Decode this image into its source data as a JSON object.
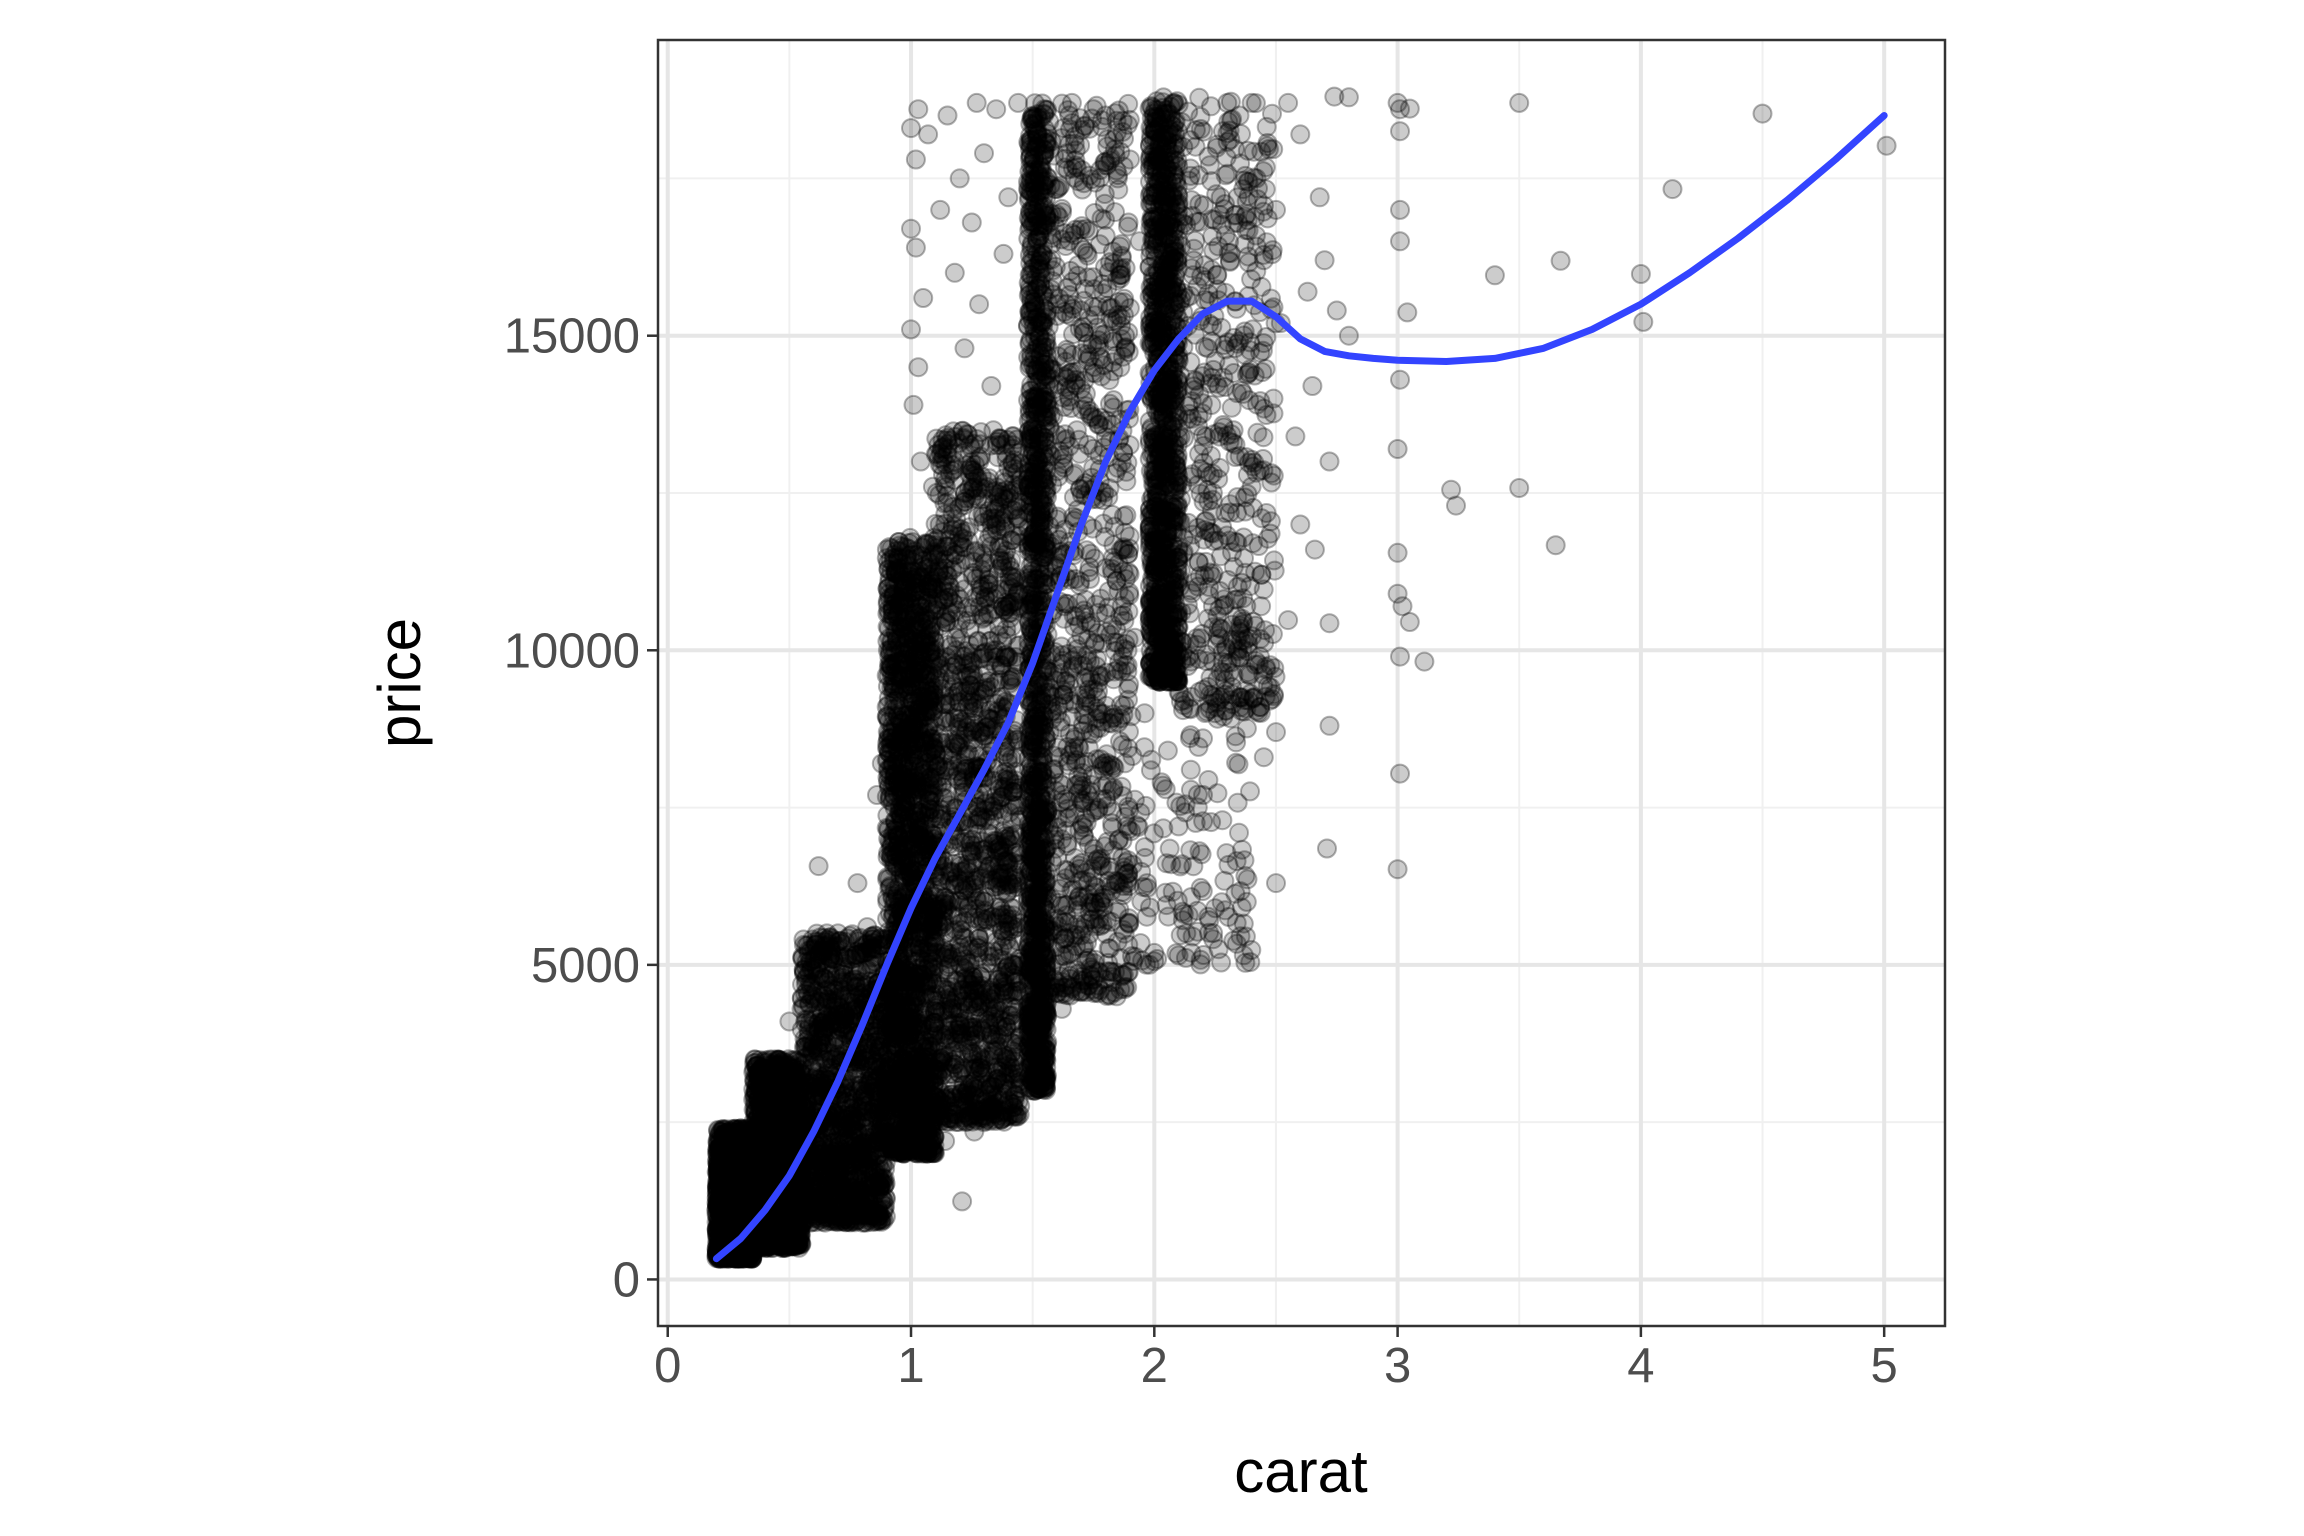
{
  "chart_data": {
    "type": "scatter",
    "title": "",
    "xlabel": "carat",
    "ylabel": "price",
    "xlim": [
      -0.04,
      5.25
    ],
    "ylim": [
      -740,
      19700
    ],
    "x_ticks": [
      0,
      1,
      2,
      3,
      4,
      5
    ],
    "y_ticks": [
      0,
      5000,
      10000,
      15000
    ],
    "x_tick_labels": [
      "0",
      "1",
      "2",
      "3",
      "4",
      "5"
    ],
    "y_tick_labels": [
      "0",
      "5000",
      "10000",
      "15000"
    ],
    "grid": true,
    "legend": "none",
    "point_color": "#000000",
    "point_alpha": 0.2,
    "smooth_color": "#3344ff",
    "dense_bands": [
      {
        "x_min": 0.2,
        "x_max": 0.35,
        "y_min": 330,
        "y_max": 2400,
        "weight": 1500
      },
      {
        "x_min": 0.35,
        "x_max": 0.55,
        "y_min": 500,
        "y_max": 3500,
        "weight": 1300
      },
      {
        "x_min": 0.55,
        "x_max": 0.9,
        "y_min": 900,
        "y_max": 5500,
        "weight": 1300
      },
      {
        "x_min": 0.9,
        "x_max": 1.1,
        "y_min": 2000,
        "y_max": 11800,
        "weight": 1800
      },
      {
        "x_min": 1.1,
        "x_max": 1.45,
        "y_min": 2500,
        "y_max": 13500,
        "weight": 1500
      },
      {
        "x_min": 1.48,
        "x_max": 1.56,
        "y_min": 3000,
        "y_max": 18700,
        "weight": 1300
      },
      {
        "x_min": 1.56,
        "x_max": 1.9,
        "y_min": 4500,
        "y_max": 18700,
        "weight": 900
      },
      {
        "x_min": 1.98,
        "x_max": 2.1,
        "y_min": 9500,
        "y_max": 18800,
        "weight": 1100
      },
      {
        "x_min": 2.1,
        "x_max": 2.5,
        "y_min": 9000,
        "y_max": 18800,
        "weight": 500
      },
      {
        "x_min": 1.9,
        "x_max": 2.4,
        "y_min": 5000,
        "y_max": 9000,
        "weight": 120
      }
    ],
    "points": [
      {
        "x": 2.74,
        "y": 18800
      },
      {
        "x": 2.8,
        "y": 18790
      },
      {
        "x": 3.0,
        "y": 18700
      },
      {
        "x": 3.01,
        "y": 18600
      },
      {
        "x": 3.01,
        "y": 18250
      },
      {
        "x": 3.05,
        "y": 18610
      },
      {
        "x": 3.5,
        "y": 18700
      },
      {
        "x": 4.5,
        "y": 18530
      },
      {
        "x": 5.01,
        "y": 18020
      },
      {
        "x": 4.13,
        "y": 17330
      },
      {
        "x": 3.01,
        "y": 17000
      },
      {
        "x": 3.01,
        "y": 16500
      },
      {
        "x": 3.67,
        "y": 16190
      },
      {
        "x": 3.4,
        "y": 15960
      },
      {
        "x": 4.0,
        "y": 15980
      },
      {
        "x": 4.01,
        "y": 15220
      },
      {
        "x": 3.04,
        "y": 15370
      },
      {
        "x": 3.01,
        "y": 14300
      },
      {
        "x": 3.0,
        "y": 13200
      },
      {
        "x": 3.22,
        "y": 12550
      },
      {
        "x": 3.24,
        "y": 12300
      },
      {
        "x": 3.5,
        "y": 12580
      },
      {
        "x": 3.65,
        "y": 11670
      },
      {
        "x": 3.0,
        "y": 11550
      },
      {
        "x": 3.0,
        "y": 10900
      },
      {
        "x": 3.02,
        "y": 10700
      },
      {
        "x": 3.05,
        "y": 10450
      },
      {
        "x": 3.11,
        "y": 9820
      },
      {
        "x": 3.01,
        "y": 9900
      },
      {
        "x": 3.01,
        "y": 8040
      },
      {
        "x": 3.0,
        "y": 6520
      },
      {
        "x": 2.75,
        "y": 15400
      },
      {
        "x": 2.8,
        "y": 15000
      },
      {
        "x": 2.72,
        "y": 13000
      },
      {
        "x": 2.66,
        "y": 11600
      },
      {
        "x": 2.72,
        "y": 10430
      },
      {
        "x": 2.72,
        "y": 8800
      },
      {
        "x": 2.71,
        "y": 6850
      },
      {
        "x": 2.5,
        "y": 6300
      },
      {
        "x": 2.5,
        "y": 8700
      },
      {
        "x": 2.46,
        "y": 9700
      },
      {
        "x": 2.55,
        "y": 10480
      },
      {
        "x": 2.6,
        "y": 12000
      },
      {
        "x": 2.58,
        "y": 13400
      },
      {
        "x": 2.65,
        "y": 14200
      },
      {
        "x": 2.63,
        "y": 15700
      },
      {
        "x": 2.7,
        "y": 16200
      },
      {
        "x": 2.68,
        "y": 17200
      },
      {
        "x": 2.55,
        "y": 18700
      },
      {
        "x": 2.6,
        "y": 18200
      },
      {
        "x": 2.4,
        "y": 18700
      },
      {
        "x": 2.45,
        "y": 8300
      },
      {
        "x": 2.38,
        "y": 6000
      },
      {
        "x": 2.28,
        "y": 7300
      },
      {
        "x": 2.2,
        "y": 7700
      },
      {
        "x": 2.25,
        "y": 5900
      },
      {
        "x": 2.1,
        "y": 5150
      },
      {
        "x": 2.05,
        "y": 5950
      },
      {
        "x": 1.95,
        "y": 5070
      },
      {
        "x": 2.0,
        "y": 5190
      },
      {
        "x": 1.7,
        "y": 4700
      },
      {
        "x": 1.73,
        "y": 5110
      },
      {
        "x": 1.65,
        "y": 5500
      },
      {
        "x": 1.78,
        "y": 6000
      },
      {
        "x": 1.21,
        "y": 1240
      },
      {
        "x": 0.62,
        "y": 6570
      },
      {
        "x": 0.7,
        "y": 5500
      },
      {
        "x": 0.86,
        "y": 7700
      },
      {
        "x": 0.9,
        "y": 9600
      },
      {
        "x": 0.9,
        "y": 9100
      },
      {
        "x": 0.88,
        "y": 8200
      },
      {
        "x": 1.0,
        "y": 18300
      },
      {
        "x": 1.03,
        "y": 18600
      },
      {
        "x": 1.02,
        "y": 17800
      },
      {
        "x": 1.07,
        "y": 18200
      },
      {
        "x": 1.0,
        "y": 16700
      },
      {
        "x": 1.02,
        "y": 16400
      },
      {
        "x": 1.05,
        "y": 15600
      },
      {
        "x": 1.0,
        "y": 15100
      },
      {
        "x": 1.03,
        "y": 14500
      },
      {
        "x": 1.01,
        "y": 13900
      },
      {
        "x": 1.04,
        "y": 13000
      },
      {
        "x": 1.09,
        "y": 12600
      },
      {
        "x": 1.15,
        "y": 18500
      },
      {
        "x": 1.2,
        "y": 17500
      },
      {
        "x": 1.25,
        "y": 16800
      },
      {
        "x": 1.3,
        "y": 17900
      },
      {
        "x": 1.35,
        "y": 18600
      },
      {
        "x": 1.4,
        "y": 17200
      },
      {
        "x": 1.28,
        "y": 15500
      },
      {
        "x": 1.22,
        "y": 14800
      },
      {
        "x": 1.33,
        "y": 14200
      },
      {
        "x": 1.38,
        "y": 16300
      },
      {
        "x": 1.44,
        "y": 18700
      },
      {
        "x": 1.18,
        "y": 16000
      },
      {
        "x": 1.12,
        "y": 17000
      },
      {
        "x": 1.27,
        "y": 18700
      },
      {
        "x": 1.75,
        "y": 18600
      },
      {
        "x": 1.8,
        "y": 18500
      },
      {
        "x": 1.85,
        "y": 17500
      },
      {
        "x": 1.9,
        "y": 17800
      },
      {
        "x": 1.94,
        "y": 16500
      },
      {
        "x": 2.3,
        "y": 18700
      },
      {
        "x": 2.35,
        "y": 18500
      },
      {
        "x": 2.42,
        "y": 17500
      },
      {
        "x": 2.5,
        "y": 17000
      },
      {
        "x": 2.45,
        "y": 16200
      },
      {
        "x": 2.52,
        "y": 15200
      },
      {
        "x": 2.49,
        "y": 14000
      },
      {
        "x": 2.4,
        "y": 12600
      },
      {
        "x": 2.44,
        "y": 11200
      },
      {
        "x": 2.36,
        "y": 10500
      },
      {
        "x": 2.3,
        "y": 9800
      },
      {
        "x": 2.25,
        "y": 9000
      },
      {
        "x": 2.2,
        "y": 8600
      },
      {
        "x": 2.15,
        "y": 8100
      },
      {
        "x": 2.1,
        "y": 7200
      },
      {
        "x": 2.07,
        "y": 6600
      },
      {
        "x": 1.97,
        "y": 6300
      },
      {
        "x": 2.03,
        "y": 7900
      },
      {
        "x": 1.96,
        "y": 9000
      },
      {
        "x": 1.92,
        "y": 10200
      },
      {
        "x": 1.88,
        "y": 11600
      },
      {
        "x": 1.85,
        "y": 12900
      },
      {
        "x": 1.62,
        "y": 4300
      },
      {
        "x": 1.5,
        "y": 3150
      },
      {
        "x": 1.51,
        "y": 3000
      },
      {
        "x": 1.45,
        "y": 4700
      },
      {
        "x": 1.3,
        "y": 2500
      },
      {
        "x": 1.26,
        "y": 2350
      },
      {
        "x": 1.14,
        "y": 2200
      },
      {
        "x": 0.8,
        "y": 1350
      },
      {
        "x": 0.75,
        "y": 1200
      },
      {
        "x": 0.92,
        "y": 2100
      },
      {
        "x": 0.3,
        "y": 2400
      },
      {
        "x": 0.33,
        "y": 2300
      },
      {
        "x": 0.4,
        "y": 2700
      },
      {
        "x": 0.45,
        "y": 3500
      },
      {
        "x": 0.5,
        "y": 4100
      },
      {
        "x": 0.55,
        "y": 4300
      },
      {
        "x": 0.58,
        "y": 3900
      },
      {
        "x": 0.6,
        "y": 4900
      },
      {
        "x": 0.65,
        "y": 4600
      },
      {
        "x": 0.7,
        "y": 4200
      },
      {
        "x": 0.78,
        "y": 6300
      },
      {
        "x": 0.82,
        "y": 5600
      }
    ],
    "smooth": [
      {
        "x": 0.2,
        "y": 330
      },
      {
        "x": 0.3,
        "y": 650
      },
      {
        "x": 0.4,
        "y": 1100
      },
      {
        "x": 0.5,
        "y": 1650
      },
      {
        "x": 0.6,
        "y": 2350
      },
      {
        "x": 0.7,
        "y": 3150
      },
      {
        "x": 0.8,
        "y": 4050
      },
      {
        "x": 0.9,
        "y": 5000
      },
      {
        "x": 1.0,
        "y": 5900
      },
      {
        "x": 1.1,
        "y": 6700
      },
      {
        "x": 1.2,
        "y": 7400
      },
      {
        "x": 1.3,
        "y": 8100
      },
      {
        "x": 1.4,
        "y": 8850
      },
      {
        "x": 1.5,
        "y": 9800
      },
      {
        "x": 1.6,
        "y": 10900
      },
      {
        "x": 1.7,
        "y": 12000
      },
      {
        "x": 1.8,
        "y": 13000
      },
      {
        "x": 1.9,
        "y": 13800
      },
      {
        "x": 2.0,
        "y": 14450
      },
      {
        "x": 2.1,
        "y": 14950
      },
      {
        "x": 2.2,
        "y": 15350
      },
      {
        "x": 2.3,
        "y": 15550
      },
      {
        "x": 2.4,
        "y": 15550
      },
      {
        "x": 2.5,
        "y": 15300
      },
      {
        "x": 2.6,
        "y": 14950
      },
      {
        "x": 2.7,
        "y": 14750
      },
      {
        "x": 2.8,
        "y": 14680
      },
      {
        "x": 2.9,
        "y": 14640
      },
      {
        "x": 3.0,
        "y": 14610
      },
      {
        "x": 3.2,
        "y": 14590
      },
      {
        "x": 3.4,
        "y": 14640
      },
      {
        "x": 3.6,
        "y": 14800
      },
      {
        "x": 3.8,
        "y": 15100
      },
      {
        "x": 4.0,
        "y": 15500
      },
      {
        "x": 4.2,
        "y": 16000
      },
      {
        "x": 4.4,
        "y": 16550
      },
      {
        "x": 4.6,
        "y": 17150
      },
      {
        "x": 4.8,
        "y": 17800
      },
      {
        "x": 5.0,
        "y": 18500
      }
    ]
  }
}
